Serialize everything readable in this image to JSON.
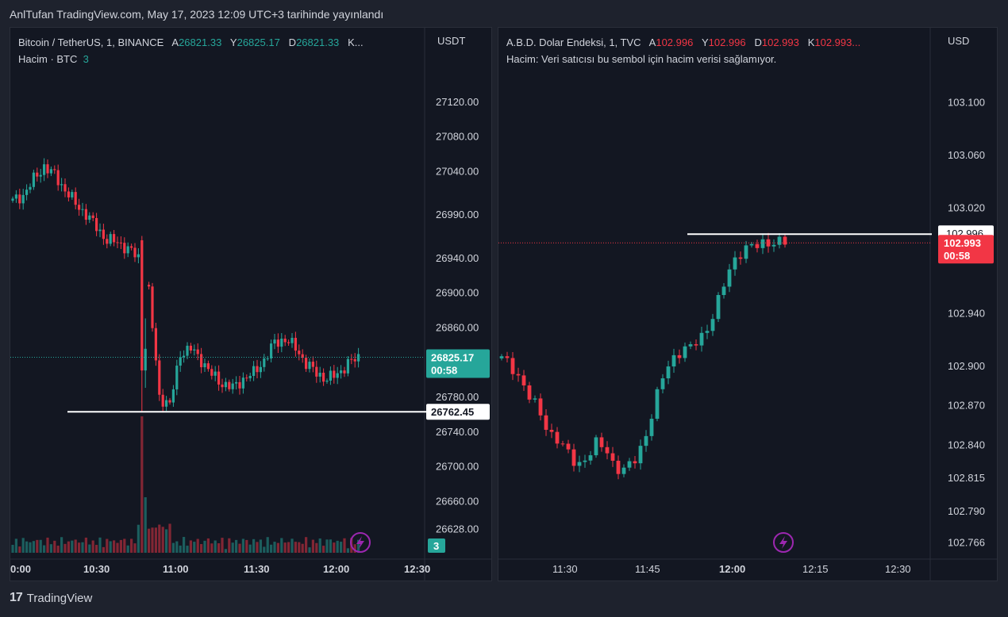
{
  "header": {
    "publish_text": "AnlTufan TradingView.com, May 17, 2023 12:09 UTC+3 tarihinde yayınlandı"
  },
  "footer": {
    "brand": "TradingView",
    "logo_glyph": "17"
  },
  "colors": {
    "up": "#26a69a",
    "down": "#f23645",
    "line": "#ffffff"
  },
  "chart_data": [
    {
      "type": "candlestick",
      "legend": {
        "symbol": "Bitcoin / TetherUS, 1, BINANCE",
        "open_label": "A",
        "open": "26821.33",
        "high_label": "Y",
        "high": "26825.17",
        "low_label": "D",
        "low": "26821.33",
        "close_label": "K...",
        "volume_label": "Hacim · BTC",
        "volume_value": "3"
      },
      "currency": "USDT",
      "y_ticks": [
        "27120.00",
        "27080.00",
        "27040.00",
        "26990.00",
        "26940.00",
        "26900.00",
        "26860.00",
        "26780.00",
        "26740.00",
        "26700.00",
        "26660.00",
        "26628.00"
      ],
      "x_ticks": [
        "0:00",
        "10:30",
        "11:00",
        "11:30",
        "12:00",
        "12:30"
      ],
      "last_price": "26825.17",
      "last_countdown": "00:58",
      "hline_label": "26762.45",
      "volume_badge": "3",
      "ylim": [
        26600,
        27150
      ],
      "path": [
        27005,
        27012,
        27030,
        27045,
        27035,
        27018,
        27002,
        26990,
        26975,
        26960,
        26958,
        26950,
        26940,
        26900,
        26780,
        26770,
        26830,
        26835,
        26822,
        26805,
        26795,
        26790,
        26800,
        26807,
        26822,
        26842,
        26846,
        26836,
        26818,
        26807,
        26800,
        26806,
        26818,
        26825
      ],
      "hline": 26762.45,
      "spike_low": 26762.45
    },
    {
      "type": "candlestick",
      "legend": {
        "symbol": "A.B.D. Dolar Endeksi, 1, TVC",
        "open_label": "A",
        "open": "102.996",
        "high_label": "Y",
        "high": "102.996",
        "low_label": "D",
        "low": "102.993",
        "close_label": "K",
        "close": "102.993...",
        "volume_label": "Hacim: Veri satıcısı bu sembol için hacim verisi sağlamıyor."
      },
      "currency": "USD",
      "y_ticks": [
        "103.100",
        "103.060",
        "103.020",
        "102.940",
        "102.900",
        "102.870",
        "102.840",
        "102.815",
        "102.790",
        "102.766"
      ],
      "x_ticks": [
        "11:30",
        "11:45",
        "12:00",
        "12:15",
        "12:30"
      ],
      "last_price": "102.993",
      "last_countdown": "00:58",
      "hline_label": "102.996",
      "ylim": [
        102.758,
        103.12
      ],
      "path": [
        102.905,
        102.9,
        102.89,
        102.875,
        102.865,
        102.85,
        102.843,
        102.833,
        102.825,
        102.83,
        102.84,
        102.838,
        102.823,
        102.82,
        102.827,
        102.842,
        102.865,
        102.89,
        102.905,
        102.912,
        102.913,
        102.92,
        102.932,
        102.95,
        102.97,
        102.985,
        102.99,
        102.99,
        102.993,
        102.995,
        102.993
      ],
      "hline": 102.996
    }
  ]
}
